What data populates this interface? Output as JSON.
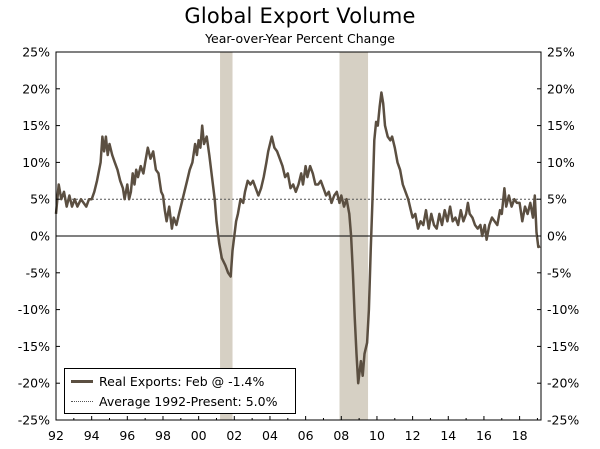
{
  "chart_data": {
    "type": "line",
    "title": "Global Export Volume",
    "subtitle": "Year-over-Year Percent Change",
    "xlabel": "",
    "ylabel": "",
    "x_range": [
      1992.0,
      2019.2
    ],
    "ylim": [
      -25,
      25
    ],
    "y_ticks": [
      25,
      20,
      15,
      10,
      5,
      0,
      -5,
      -10,
      -15,
      -20,
      -25
    ],
    "y_tick_labels": [
      "25%",
      "20%",
      "15%",
      "10%",
      "5%",
      "0%",
      "-5%",
      "-10%",
      "-15%",
      "-20%",
      "-25%"
    ],
    "x_ticks": [
      1992,
      1994,
      1996,
      1998,
      2000,
      2002,
      2004,
      2006,
      2008,
      2010,
      2012,
      2014,
      2016,
      2018
    ],
    "x_tick_labels": [
      "92",
      "94",
      "96",
      "98",
      "00",
      "02",
      "04",
      "06",
      "08",
      "10",
      "12",
      "14",
      "16",
      "18"
    ],
    "recessions": [
      [
        2001.2,
        2001.9
      ],
      [
        2007.9,
        2009.5
      ]
    ],
    "colors": {
      "series": "#5b4f41",
      "recession": "#d6d0c4",
      "average": "#555555"
    },
    "grid": false,
    "legend_position": "bottom-left",
    "series": [
      {
        "name": "Real Exports: Feb @ -1.4%",
        "points": [
          [
            1992.0,
            3.0
          ],
          [
            1992.15,
            7.0
          ],
          [
            1992.3,
            5.0
          ],
          [
            1992.45,
            6.0
          ],
          [
            1992.6,
            4.0
          ],
          [
            1992.75,
            5.5
          ],
          [
            1992.9,
            4.0
          ],
          [
            1993.05,
            5.0
          ],
          [
            1993.2,
            4.0
          ],
          [
            1993.4,
            5.0
          ],
          [
            1993.55,
            4.5
          ],
          [
            1993.7,
            4.0
          ],
          [
            1993.85,
            5.0
          ],
          [
            1994.0,
            5.0
          ],
          [
            1994.15,
            6.0
          ],
          [
            1994.3,
            7.5
          ],
          [
            1994.5,
            10.0
          ],
          [
            1994.6,
            13.5
          ],
          [
            1994.7,
            11.5
          ],
          [
            1994.8,
            13.5
          ],
          [
            1994.9,
            11.0
          ],
          [
            1995.0,
            12.5
          ],
          [
            1995.15,
            11.0
          ],
          [
            1995.3,
            10.0
          ],
          [
            1995.45,
            9.0
          ],
          [
            1995.6,
            7.5
          ],
          [
            1995.75,
            6.5
          ],
          [
            1995.85,
            5.0
          ],
          [
            1996.0,
            7.0
          ],
          [
            1996.1,
            5.0
          ],
          [
            1996.2,
            6.0
          ],
          [
            1996.3,
            8.5
          ],
          [
            1996.4,
            7.0
          ],
          [
            1996.5,
            9.0
          ],
          [
            1996.6,
            8.0
          ],
          [
            1996.75,
            9.5
          ],
          [
            1996.9,
            8.5
          ],
          [
            1997.0,
            10.0
          ],
          [
            1997.15,
            12.0
          ],
          [
            1997.3,
            10.5
          ],
          [
            1997.45,
            11.5
          ],
          [
            1997.6,
            9.0
          ],
          [
            1997.75,
            8.5
          ],
          [
            1997.9,
            6.0
          ],
          [
            1998.0,
            5.5
          ],
          [
            1998.1,
            3.5
          ],
          [
            1998.2,
            2.0
          ],
          [
            1998.35,
            4.0
          ],
          [
            1998.5,
            1.0
          ],
          [
            1998.6,
            2.5
          ],
          [
            1998.75,
            1.5
          ],
          [
            1998.9,
            3.0
          ],
          [
            1999.05,
            4.5
          ],
          [
            1999.2,
            6.0
          ],
          [
            1999.35,
            7.5
          ],
          [
            1999.5,
            9.0
          ],
          [
            1999.65,
            10.0
          ],
          [
            1999.8,
            12.5
          ],
          [
            1999.9,
            11.0
          ],
          [
            2000.0,
            13.0
          ],
          [
            2000.1,
            12.0
          ],
          [
            2000.2,
            15.0
          ],
          [
            2000.3,
            12.5
          ],
          [
            2000.45,
            13.5
          ],
          [
            2000.6,
            11.0
          ],
          [
            2000.75,
            8.0
          ],
          [
            2000.9,
            5.0
          ],
          [
            2001.0,
            2.0
          ],
          [
            2001.15,
            -1.0
          ],
          [
            2001.3,
            -3.0
          ],
          [
            2001.5,
            -4.0
          ],
          [
            2001.65,
            -5.0
          ],
          [
            2001.8,
            -5.5
          ],
          [
            2001.9,
            -2.0
          ],
          [
            2002.0,
            0.0
          ],
          [
            2002.1,
            2.0
          ],
          [
            2002.2,
            3.0
          ],
          [
            2002.35,
            5.0
          ],
          [
            2002.5,
            4.5
          ],
          [
            2002.6,
            6.0
          ],
          [
            2002.75,
            7.5
          ],
          [
            2002.9,
            7.0
          ],
          [
            2003.05,
            7.5
          ],
          [
            2003.2,
            6.5
          ],
          [
            2003.35,
            5.5
          ],
          [
            2003.5,
            6.5
          ],
          [
            2003.65,
            8.0
          ],
          [
            2003.8,
            10.0
          ],
          [
            2003.9,
            11.5
          ],
          [
            2004.0,
            12.5
          ],
          [
            2004.1,
            13.5
          ],
          [
            2004.25,
            12.0
          ],
          [
            2004.4,
            11.5
          ],
          [
            2004.55,
            10.5
          ],
          [
            2004.7,
            9.5
          ],
          [
            2004.85,
            8.0
          ],
          [
            2005.0,
            8.5
          ],
          [
            2005.15,
            6.5
          ],
          [
            2005.3,
            7.0
          ],
          [
            2005.45,
            6.0
          ],
          [
            2005.6,
            7.0
          ],
          [
            2005.75,
            8.5
          ],
          [
            2005.85,
            7.0
          ],
          [
            2006.0,
            9.5
          ],
          [
            2006.1,
            8.0
          ],
          [
            2006.25,
            9.5
          ],
          [
            2006.4,
            8.5
          ],
          [
            2006.55,
            7.0
          ],
          [
            2006.7,
            7.0
          ],
          [
            2006.85,
            7.5
          ],
          [
            2007.0,
            6.5
          ],
          [
            2007.15,
            5.5
          ],
          [
            2007.3,
            6.0
          ],
          [
            2007.45,
            4.5
          ],
          [
            2007.6,
            5.5
          ],
          [
            2007.75,
            6.0
          ],
          [
            2007.9,
            4.5
          ],
          [
            2008.0,
            5.5
          ],
          [
            2008.15,
            4.0
          ],
          [
            2008.3,
            5.0
          ],
          [
            2008.45,
            3.0
          ],
          [
            2008.55,
            0.0
          ],
          [
            2008.65,
            -5.0
          ],
          [
            2008.75,
            -11.0
          ],
          [
            2008.85,
            -16.0
          ],
          [
            2008.95,
            -20.0
          ],
          [
            2009.1,
            -17.0
          ],
          [
            2009.2,
            -19.0
          ],
          [
            2009.3,
            -16.0
          ],
          [
            2009.45,
            -14.5
          ],
          [
            2009.55,
            -10.0
          ],
          [
            2009.65,
            -2.0
          ],
          [
            2009.75,
            5.0
          ],
          [
            2009.85,
            13.0
          ],
          [
            2009.95,
            15.5
          ],
          [
            2010.05,
            15.0
          ],
          [
            2010.15,
            17.5
          ],
          [
            2010.25,
            19.5
          ],
          [
            2010.35,
            18.0
          ],
          [
            2010.45,
            15.0
          ],
          [
            2010.6,
            13.5
          ],
          [
            2010.75,
            13.0
          ],
          [
            2010.85,
            13.5
          ],
          [
            2011.0,
            12.0
          ],
          [
            2011.15,
            10.0
          ],
          [
            2011.3,
            9.0
          ],
          [
            2011.45,
            7.0
          ],
          [
            2011.6,
            6.0
          ],
          [
            2011.75,
            5.0
          ],
          [
            2011.9,
            3.5
          ],
          [
            2012.0,
            2.5
          ],
          [
            2012.15,
            3.0
          ],
          [
            2012.3,
            1.0
          ],
          [
            2012.45,
            2.0
          ],
          [
            2012.6,
            1.5
          ],
          [
            2012.75,
            3.5
          ],
          [
            2012.9,
            1.0
          ],
          [
            2013.05,
            3.0
          ],
          [
            2013.2,
            1.5
          ],
          [
            2013.35,
            1.0
          ],
          [
            2013.5,
            3.0
          ],
          [
            2013.65,
            1.5
          ],
          [
            2013.8,
            3.5
          ],
          [
            2013.95,
            2.0
          ],
          [
            2014.1,
            4.0
          ],
          [
            2014.25,
            2.0
          ],
          [
            2014.4,
            2.5
          ],
          [
            2014.55,
            1.5
          ],
          [
            2014.7,
            3.5
          ],
          [
            2014.85,
            2.0
          ],
          [
            2015.0,
            3.0
          ],
          [
            2015.1,
            4.5
          ],
          [
            2015.2,
            3.0
          ],
          [
            2015.35,
            2.5
          ],
          [
            2015.5,
            1.5
          ],
          [
            2015.65,
            1.0
          ],
          [
            2015.8,
            1.5
          ],
          [
            2015.9,
            0.0
          ],
          [
            2016.05,
            1.5
          ],
          [
            2016.15,
            -0.5
          ],
          [
            2016.3,
            1.5
          ],
          [
            2016.45,
            2.5
          ],
          [
            2016.6,
            2.0
          ],
          [
            2016.75,
            1.5
          ],
          [
            2016.9,
            3.5
          ],
          [
            2017.0,
            3.0
          ],
          [
            2017.15,
            6.5
          ],
          [
            2017.25,
            4.0
          ],
          [
            2017.4,
            5.5
          ],
          [
            2017.55,
            4.0
          ],
          [
            2017.7,
            5.0
          ],
          [
            2017.85,
            4.5
          ],
          [
            2018.0,
            4.5
          ],
          [
            2018.15,
            2.0
          ],
          [
            2018.3,
            4.0
          ],
          [
            2018.45,
            3.0
          ],
          [
            2018.6,
            4.5
          ],
          [
            2018.75,
            2.5
          ],
          [
            2018.85,
            5.5
          ],
          [
            2018.95,
            0.5
          ],
          [
            2019.05,
            -1.5
          ],
          [
            2019.15,
            -1.4
          ]
        ]
      },
      {
        "name": "Average 1992-Present: 5.0%",
        "value": 5.0,
        "style": "dotted"
      }
    ]
  }
}
